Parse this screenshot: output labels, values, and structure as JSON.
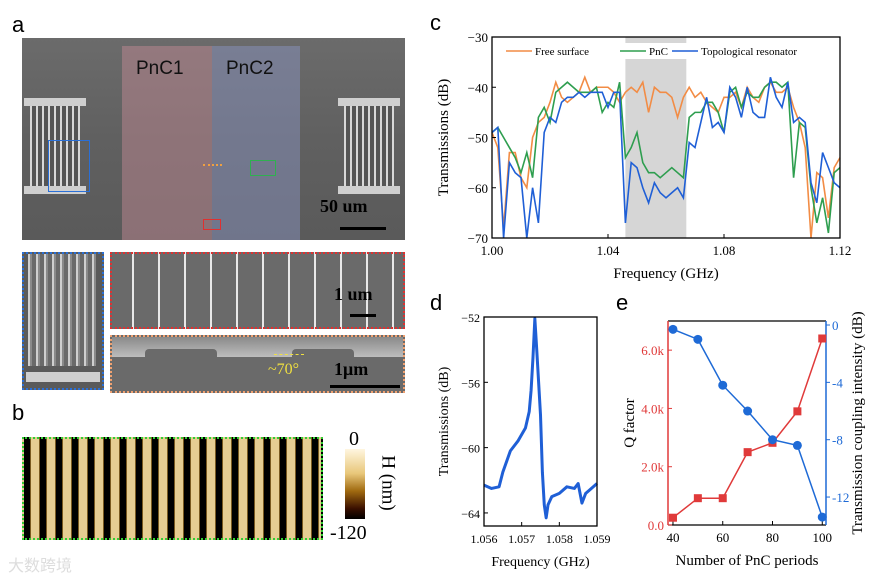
{
  "panel_labels": {
    "a": "a",
    "b": "b",
    "c": "c",
    "d": "d",
    "e": "e"
  },
  "panel_a": {
    "region_labels": [
      "PnC1",
      "PnC2"
    ],
    "scale_main": "50 um",
    "scale_inset_top": "1 um",
    "scale_inset_bottom": "1μm",
    "angle_label": "~70°"
  },
  "panel_b": {
    "colorbar_max": "0",
    "colorbar_min": "-120",
    "colorbar_label": "H (nm)"
  },
  "watermark": "大数跨境",
  "colors": {
    "free": "#f28c45",
    "pnc": "#2e9e4f",
    "topo": "#1f5fd6",
    "q": "#e03a3a",
    "coupling": "#1e6ad6",
    "band": "#d6d6d6"
  },
  "chart_data": [
    {
      "id": "c",
      "type": "line",
      "xlabel": "Frequency (GHz)",
      "ylabel": "Transmissions (dB)",
      "xlim": [
        1.0,
        1.12
      ],
      "ylim": [
        -70,
        -30
      ],
      "xticks": [
        "1.00",
        "1.04",
        "1.08",
        "1.12"
      ],
      "xtick_values": [
        1.0,
        1.04,
        1.08,
        1.12
      ],
      "yticks": [
        "−70",
        "−60",
        "−50",
        "−40",
        "−30"
      ],
      "ytick_values": [
        -70,
        -60,
        -50,
        -40,
        -30
      ],
      "shaded_band": [
        1.046,
        1.067
      ],
      "legend_position": "top",
      "x_start": 1.0,
      "x_step": 0.002,
      "series": [
        {
          "name": "Free surface",
          "color_key": "free",
          "values": [
            -49,
            -52,
            -68,
            -53,
            -53,
            -58,
            -60,
            -50,
            -47,
            -46,
            -43,
            -39,
            -42,
            -43,
            -42,
            -41,
            -38,
            -41,
            -40,
            -40,
            -40,
            -41,
            -43,
            -41,
            -40,
            -41,
            -39,
            -45,
            -40,
            -41,
            -41,
            -42,
            -46,
            -42,
            -40,
            -42,
            -41,
            -43,
            -44,
            -45,
            -42,
            -42,
            -41,
            -44,
            -40,
            -42,
            -43,
            -40,
            -39,
            -41,
            -41,
            -40,
            -44,
            -47,
            -52,
            -70,
            -57,
            -58,
            -66,
            -56,
            -54
          ]
        },
        {
          "name": "PnC",
          "color_key": "pnc",
          "values": [
            -49,
            -48,
            -50,
            -52,
            -54,
            -57,
            -53,
            -58,
            -46,
            -44,
            -47,
            -41,
            -40,
            -39,
            -40,
            -41,
            -41,
            -41,
            -40,
            -45,
            -43,
            -44,
            -39,
            -54,
            -52,
            -49,
            -55,
            -57,
            -57,
            -58,
            -57,
            -56,
            -57,
            -58,
            -46,
            -45,
            -45,
            -43,
            -43,
            -45,
            -49,
            -41,
            -40,
            -44,
            -41,
            -42,
            -42,
            -40,
            -39,
            -39,
            -40,
            -39,
            -58,
            -47,
            -48,
            -60,
            -67,
            -62,
            -69,
            -57,
            -56
          ]
        },
        {
          "name": "Topological resonator",
          "color_key": "topo",
          "values": [
            -49,
            -48,
            -70,
            -55,
            -57,
            -58,
            -70,
            -60,
            -67,
            -49,
            -46,
            -47,
            -43,
            -42,
            -42,
            -41,
            -42,
            -41,
            -41,
            -41,
            -44,
            -41,
            -41,
            -67,
            -55,
            -56,
            -60,
            -63,
            -59,
            -61,
            -62,
            -61,
            -60,
            -62,
            -51,
            -52,
            -47,
            -42,
            -48,
            -47,
            -49,
            -40,
            -42,
            -46,
            -40,
            -45,
            -46,
            -46,
            -38,
            -42,
            -44,
            -39,
            -47,
            -46,
            -47,
            -59,
            -63,
            -53,
            -56,
            -59,
            -60
          ]
        }
      ]
    },
    {
      "id": "d",
      "type": "line",
      "xlabel": "Frequency (GHz)",
      "ylabel": "Transmissions (dB)",
      "xlim": [
        1.056,
        1.059
      ],
      "ylim": [
        -64.8,
        -52
      ],
      "xticks": [
        "1.056",
        "1.057",
        "1.058",
        "1.059"
      ],
      "xtick_values": [
        1.056,
        1.057,
        1.058,
        1.059
      ],
      "yticks": [
        "−64",
        "−60",
        "−56",
        "−52"
      ],
      "ytick_values": [
        -64,
        -60,
        -56,
        -52
      ],
      "series": [
        {
          "name": "Topological resonator",
          "color_key": "topo",
          "x": [
            1.056,
            1.0562,
            1.0564,
            1.0565,
            1.0567,
            1.0569,
            1.0571,
            1.0572,
            1.05725,
            1.0573,
            1.05735,
            1.0574,
            1.0575,
            1.05755,
            1.0576,
            1.05765,
            1.0577,
            1.0578,
            1.058,
            1.0582,
            1.0584,
            1.0585,
            1.0586,
            1.0587,
            1.0588,
            1.059
          ],
          "y": [
            -62.3,
            -62.5,
            -62.4,
            -61.5,
            -60.2,
            -59.6,
            -58.8,
            -57.8,
            -56.5,
            -54.5,
            -52.1,
            -54,
            -58,
            -61.5,
            -63.5,
            -64.3,
            -63.5,
            -63,
            -62.8,
            -62.4,
            -62.5,
            -62.2,
            -63.4,
            -62.8,
            -62.6,
            -62.2
          ]
        }
      ]
    },
    {
      "id": "e",
      "type": "line",
      "xlabel": "Number of PnC periods",
      "ylabel": "Q factor",
      "y2label": "Transmission coupling intensity (dB)",
      "xlim": [
        38,
        101.5
      ],
      "ylim": [
        0,
        7.0
      ],
      "y2lim": [
        -13.95,
        0.28
      ],
      "xticks": [
        "40",
        "60",
        "80",
        "100"
      ],
      "xtick_values": [
        40,
        60,
        80,
        100
      ],
      "yticks": [
        "0.0",
        "2.0k",
        "4.0k",
        "6.0k"
      ],
      "ytick_values": [
        0,
        2,
        4,
        6
      ],
      "y2ticks": [
        "-12",
        "-8",
        "-4",
        "0"
      ],
      "y2tick_values": [
        -12,
        -8,
        -4,
        0
      ],
      "x": [
        40,
        50,
        60,
        70,
        80,
        90,
        100
      ],
      "series": [
        {
          "name": "Q factor",
          "color_key": "q",
          "axis": "left",
          "marker": "square",
          "unit": "k",
          "values": [
            0.25,
            0.92,
            0.92,
            2.5,
            2.82,
            3.9,
            6.4
          ]
        },
        {
          "name": "Transmission coupling intensity",
          "color_key": "coupling",
          "axis": "right",
          "marker": "circle",
          "unit": "dB",
          "values": [
            -0.3,
            -1.0,
            -4.2,
            -6.0,
            -8.0,
            -8.4,
            -13.4
          ]
        }
      ]
    }
  ]
}
